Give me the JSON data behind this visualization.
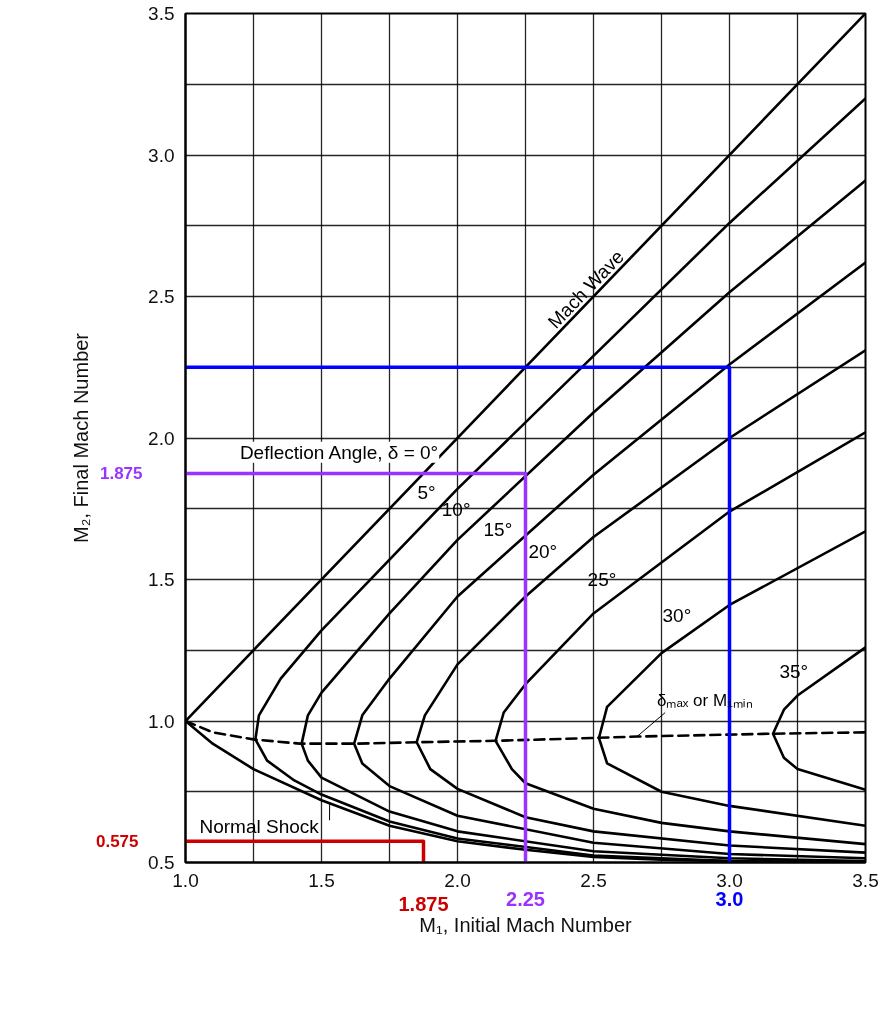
{
  "chart_data": {
    "type": "line",
    "xlabel": "M₁, Initial Mach Number",
    "ylabel": "M₂, Final Mach Number",
    "xlim": [
      1.0,
      3.5
    ],
    "ylim": [
      0.5,
      3.5
    ],
    "xticks": [
      {
        "value": 1.0,
        "label": "1.0"
      },
      {
        "value": 1.25,
        "label": null
      },
      1.5,
      {
        "value": 1.75,
        "label": null
      },
      {
        "value": 2.0,
        "label": "2.0"
      },
      {
        "value": 2.25,
        "label": null
      },
      2.5,
      {
        "value": 2.75,
        "label": null
      },
      {
        "value": 3.0,
        "label": "3.0"
      },
      {
        "value": 3.25,
        "label": null
      },
      3.5
    ],
    "yticks": [
      0.5,
      {
        "value": 0.75,
        "label": null
      },
      {
        "value": 1.0,
        "label": "1.0"
      },
      {
        "value": 1.25,
        "label": null
      },
      1.5,
      {
        "value": 1.75,
        "label": null
      },
      {
        "value": 2.0,
        "label": "2.0"
      },
      {
        "value": 2.25,
        "label": null
      },
      2.5,
      {
        "value": 2.75,
        "label": null
      },
      {
        "value": 3.0,
        "label": "3.0"
      },
      {
        "value": 3.25,
        "label": null
      },
      3.5
    ],
    "grid": true,
    "line_style": "solid",
    "series": [
      {
        "name": "Mach Wave",
        "color": "#000000",
        "x": [
          1.0,
          3.5
        ],
        "values": [
          1.0,
          3.5
        ]
      },
      {
        "name": "Normal Shock",
        "color": "#000000",
        "x": [
          1.0,
          1.1,
          1.25,
          1.5,
          1.75,
          2.0,
          2.25,
          2.5,
          2.75,
          3.0,
          3.5
        ],
        "values": [
          1.0,
          0.92,
          0.83,
          0.72,
          0.63,
          0.575,
          0.545,
          0.52,
          0.51,
          0.505,
          0.5
        ]
      },
      {
        "name": "5°",
        "color": "#000000",
        "x": [
          3.5,
          3.0,
          2.5,
          2.0,
          1.75,
          1.5,
          1.4,
          1.3,
          1.257,
          1.27,
          1.35,
          1.5,
          2.0,
          2.5,
          3.0,
          3.5
        ],
        "values": [
          0.5,
          0.505,
          0.525,
          0.585,
          0.645,
          0.74,
          0.79,
          0.86,
          0.935,
          1.02,
          1.15,
          1.32,
          1.82,
          2.29,
          2.76,
          3.2
        ]
      },
      {
        "name": "10°",
        "color": "#000000",
        "x": [
          3.5,
          3.0,
          2.5,
          2.0,
          1.75,
          1.5,
          1.45,
          1.427,
          1.45,
          1.5,
          1.75,
          2.0,
          2.5,
          3.0,
          3.5
        ],
        "values": [
          0.505,
          0.515,
          0.54,
          0.61,
          0.68,
          0.8,
          0.86,
          0.92,
          1.02,
          1.1,
          1.38,
          1.64,
          2.09,
          2.515,
          2.91
        ]
      },
      {
        "name": "15°",
        "color": "#000000",
        "x": [
          3.5,
          3.0,
          2.5,
          2.0,
          1.75,
          1.65,
          1.62,
          1.65,
          1.75,
          2.0,
          2.5,
          3.0,
          3.5
        ],
        "values": [
          0.515,
          0.53,
          0.57,
          0.665,
          0.77,
          0.85,
          0.92,
          1.02,
          1.15,
          1.44,
          1.87,
          2.26,
          2.62
        ]
      },
      {
        "name": "20°",
        "color": "#000000",
        "x": [
          3.5,
          3.0,
          2.5,
          2.25,
          2.0,
          1.9,
          1.85,
          1.88,
          2.0,
          2.25,
          2.5,
          3.0,
          3.5
        ],
        "values": [
          0.535,
          0.56,
          0.61,
          0.66,
          0.76,
          0.83,
          0.925,
          1.02,
          1.2,
          1.44,
          1.65,
          2.0,
          2.31
        ]
      },
      {
        "name": "25°",
        "color": "#000000",
        "x": [
          3.5,
          3.0,
          2.75,
          2.5,
          2.25,
          2.2,
          2.14,
          2.17,
          2.25,
          2.5,
          3.0,
          3.5
        ],
        "values": [
          0.565,
          0.61,
          0.64,
          0.69,
          0.78,
          0.83,
          0.93,
          1.03,
          1.13,
          1.38,
          1.74,
          2.02
        ]
      },
      {
        "name": "30°",
        "color": "#000000",
        "x": [
          3.5,
          3.0,
          2.75,
          2.55,
          2.52,
          2.55,
          2.75,
          3.0,
          3.5
        ],
        "values": [
          0.63,
          0.7,
          0.75,
          0.85,
          0.94,
          1.05,
          1.24,
          1.41,
          1.67
        ]
      },
      {
        "name": "35°",
        "color": "#000000",
        "x": [
          3.5,
          3.25,
          3.2,
          3.16,
          3.2,
          3.25,
          3.5
        ],
        "values": [
          0.757,
          0.83,
          0.87,
          0.955,
          1.04,
          1.09,
          1.26
        ]
      },
      {
        "name": "δₘₐₓ or M₁ₘᵢₙ",
        "color": "#000000",
        "line_style": "dashed",
        "x": [
          1.0,
          1.1,
          1.25,
          1.42,
          1.63,
          1.85,
          2.14,
          2.5,
          2.66,
          3.15,
          3.5
        ],
        "values": [
          1.0,
          0.96,
          0.935,
          0.92,
          0.92,
          0.925,
          0.93,
          0.94,
          0.945,
          0.955,
          0.96
        ]
      },
      {
        "color": "#cc0000",
        "x": [
          1.875,
          1.875,
          1.0
        ],
        "values": [
          0.5,
          0.575,
          0.575
        ]
      },
      {
        "color": "#9933ff",
        "x": [
          2.25,
          2.25,
          1.0
        ],
        "values": [
          0.5,
          1.875,
          1.875
        ]
      },
      {
        "color": "#0000ff",
        "x": [
          3.0,
          3.0,
          1.0
        ],
        "values": [
          0.5,
          2.25,
          2.25
        ]
      }
    ],
    "annotations": [
      "Deflection Angle, δ = 0°",
      {
        "text": "1.875",
        "x": 1.875,
        "y": 0.5
      },
      {
        "text": "2.25",
        "x": 2.25,
        "y": 0.5
      },
      {
        "text": "3.0",
        "x": 3.0,
        "y": 0.5
      },
      {
        "text": "0.575",
        "x": 1.0,
        "y": 0.575
      },
      {
        "text": "1.875",
        "x": 1.0,
        "y": 1.875
      }
    ]
  }
}
